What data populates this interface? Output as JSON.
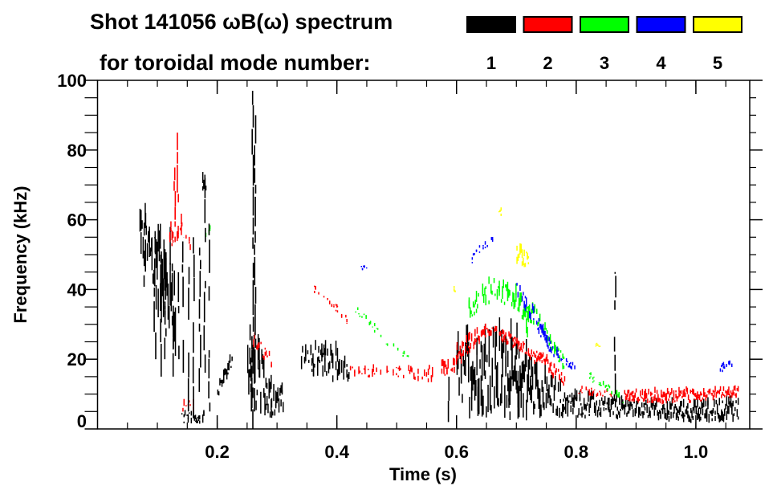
{
  "chart_data": {
    "type": "heatmap",
    "title_line1": "Shot 141056 ωB(ω) spectrum",
    "title_line2": "for toroidal mode number:",
    "xlabel": "Time (s)",
    "ylabel": "Frequency (kHz)",
    "xlim": [
      0,
      1.09
    ],
    "ylim": [
      0,
      100
    ],
    "x_ticks": [
      0.2,
      0.4,
      0.6,
      0.8,
      1.0
    ],
    "x_tick_labels": [
      "0.2",
      "0.4",
      "0.6",
      "0.8",
      "1.0"
    ],
    "x_minor_step": 0.05,
    "y_ticks": [
      0,
      20,
      40,
      60,
      80,
      100
    ],
    "y_tick_labels": [
      "0",
      "20",
      "40",
      "60",
      "80",
      "100"
    ],
    "y_minor_step": 5,
    "legend": [
      {
        "mode": "1",
        "color": "#000000"
      },
      {
        "mode": "2",
        "color": "#ff0000"
      },
      {
        "mode": "3",
        "color": "#00ff00"
      },
      {
        "mode": "4",
        "color": "#0000ff"
      },
      {
        "mode": "5",
        "color": "#ffff00"
      }
    ],
    "legend_placement": "top-right",
    "traces": [
      {
        "mode": 1,
        "density": 1.0,
        "pts": [
          [
            0.07,
            55,
            6
          ],
          [
            0.09,
            47,
            9
          ],
          [
            0.11,
            38,
            12
          ],
          [
            0.13,
            32,
            14
          ]
        ]
      },
      {
        "mode": 1,
        "density": 1.0,
        "pts": [
          [
            0.175,
            70,
            3
          ],
          [
            0.181,
            70,
            2
          ]
        ]
      },
      {
        "mode": 1,
        "density": 1.0,
        "pts": [
          [
            0.2,
            9,
            2
          ],
          [
            0.21,
            14,
            2
          ],
          [
            0.225,
            20,
            2
          ]
        ]
      },
      {
        "mode": 1,
        "density": 1.0,
        "pts": [
          [
            0.25,
            14,
            8
          ],
          [
            0.27,
            12,
            8
          ],
          [
            0.29,
            8,
            5
          ],
          [
            0.31,
            7,
            3
          ]
        ]
      },
      {
        "mode": 1,
        "density": 0.8,
        "pts": [
          [
            0.34,
            20,
            4
          ],
          [
            0.36,
            19,
            4
          ],
          [
            0.38,
            18,
            4
          ],
          [
            0.4,
            17,
            4
          ],
          [
            0.42,
            16,
            3
          ]
        ]
      },
      {
        "mode": 1,
        "density": 1.0,
        "pts": [
          [
            0.6,
            12,
            9
          ],
          [
            0.65,
            14,
            11
          ],
          [
            0.7,
            12,
            10
          ],
          [
            0.75,
            8,
            5
          ],
          [
            0.8,
            6,
            3
          ]
        ]
      },
      {
        "mode": 1,
        "density": 1.0,
        "pts": [
          [
            0.8,
            6,
            3
          ],
          [
            0.9,
            5,
            2.5
          ],
          [
            1.0,
            4,
            2.5
          ],
          [
            1.07,
            5,
            3
          ]
        ]
      },
      {
        "mode": 1,
        "density": 0.7,
        "pts": [
          [
            0.14,
            3,
            1.5
          ],
          [
            0.18,
            3,
            1.5
          ]
        ]
      },
      {
        "mode": 2,
        "density": 0.5,
        "pts": [
          [
            0.36,
            40,
            1
          ],
          [
            0.38,
            38,
            1
          ],
          [
            0.4,
            34,
            1
          ],
          [
            0.42,
            30,
            1
          ]
        ]
      },
      {
        "mode": 2,
        "density": 0.5,
        "pts": [
          [
            0.42,
            16,
            1.5
          ],
          [
            0.5,
            16,
            1.5
          ],
          [
            0.55,
            15,
            2
          ],
          [
            0.6,
            18,
            2
          ]
        ]
      },
      {
        "mode": 2,
        "density": 0.9,
        "pts": [
          [
            0.6,
            20,
            3
          ],
          [
            0.63,
            25,
            2
          ],
          [
            0.65,
            28,
            1.5
          ],
          [
            0.7,
            24,
            1.5
          ],
          [
            0.75,
            18,
            2
          ],
          [
            0.78,
            13,
            1.5
          ]
        ]
      },
      {
        "mode": 2,
        "density": 0.6,
        "pts": [
          [
            0.8,
            11,
            1
          ],
          [
            0.84,
            10,
            1
          ],
          [
            0.86,
            10,
            1
          ]
        ]
      },
      {
        "mode": 2,
        "density": 1.0,
        "pts": [
          [
            0.88,
            9,
            1.5
          ],
          [
            0.95,
            9,
            2
          ],
          [
            1.0,
            9,
            1.5
          ],
          [
            1.07,
            10,
            1.5
          ]
        ]
      },
      {
        "mode": 2,
        "density": 0.5,
        "pts": [
          [
            0.12,
            55,
            3
          ],
          [
            0.14,
            56,
            3
          ],
          [
            0.155,
            52,
            3
          ]
        ]
      },
      {
        "mode": 2,
        "density": 0.7,
        "pts": [
          [
            0.14,
            6,
            2
          ],
          [
            0.16,
            6,
            2
          ]
        ]
      },
      {
        "mode": 2,
        "density": 0.6,
        "pts": [
          [
            0.26,
            25,
            2
          ],
          [
            0.29,
            19,
            2
          ]
        ]
      },
      {
        "mode": 3,
        "density": 0.5,
        "pts": [
          [
            0.42,
            36,
            1
          ],
          [
            0.45,
            31,
            1
          ],
          [
            0.48,
            25,
            1
          ],
          [
            0.52,
            20,
            1
          ]
        ]
      },
      {
        "mode": 3,
        "density": 0.8,
        "pts": [
          [
            0.62,
            32,
            3
          ],
          [
            0.66,
            40,
            3
          ],
          [
            0.7,
            36,
            3
          ],
          [
            0.74,
            30,
            2
          ],
          [
            0.78,
            18,
            2
          ]
        ]
      },
      {
        "mode": 3,
        "density": 0.8,
        "pts": [
          [
            0.7,
            33,
            5
          ],
          [
            0.72,
            30,
            5
          ]
        ]
      },
      {
        "mode": 3,
        "density": 0.5,
        "pts": [
          [
            0.82,
            15,
            1
          ],
          [
            0.88,
            8,
            1
          ]
        ]
      },
      {
        "mode": 3,
        "density": 0.6,
        "pts": [
          [
            0.18,
            55,
            2
          ],
          [
            0.19,
            58,
            1
          ]
        ]
      },
      {
        "mode": 4,
        "density": 0.5,
        "pts": [
          [
            0.62,
            47,
            1
          ],
          [
            0.64,
            52,
            1
          ],
          [
            0.66,
            54,
            1
          ]
        ]
      },
      {
        "mode": 4,
        "density": 0.7,
        "pts": [
          [
            0.7,
            40,
            2
          ],
          [
            0.74,
            28,
            2
          ],
          [
            0.76,
            22,
            1.5
          ],
          [
            0.8,
            17,
            1
          ]
        ]
      },
      {
        "mode": 4,
        "density": 0.7,
        "pts": [
          [
            1.04,
            17,
            1
          ],
          [
            1.06,
            18,
            1
          ]
        ]
      },
      {
        "mode": 4,
        "density": 0.8,
        "pts": [
          [
            0.44,
            46,
            0.5
          ],
          [
            0.45,
            46,
            0.5
          ]
        ]
      },
      {
        "mode": 5,
        "density": 0.9,
        "pts": [
          [
            0.7,
            50,
            3
          ],
          [
            0.72,
            48,
            2
          ]
        ]
      },
      {
        "mode": 5,
        "density": 0.8,
        "pts": [
          [
            0.595,
            40,
            1
          ],
          [
            0.6,
            39,
            1
          ]
        ]
      },
      {
        "mode": 5,
        "density": 0.8,
        "pts": [
          [
            0.67,
            62,
            1
          ],
          [
            0.675,
            62,
            1
          ]
        ]
      },
      {
        "mode": 5,
        "density": 0.8,
        "pts": [
          [
            0.83,
            24,
            0.5
          ],
          [
            0.84,
            24,
            0.5
          ]
        ]
      }
    ],
    "streaks": [
      [
        0.078,
        30,
        62,
        1
      ],
      [
        0.095,
        20,
        55,
        1
      ],
      [
        0.105,
        15,
        50,
        1
      ],
      [
        0.112,
        20,
        45,
        1
      ],
      [
        0.125,
        15,
        55,
        1
      ],
      [
        0.135,
        20,
        50,
        1
      ],
      [
        0.142,
        10,
        55,
        1
      ],
      [
        0.152,
        5,
        50,
        1
      ],
      [
        0.16,
        3,
        55,
        1
      ],
      [
        0.17,
        2,
        52,
        1
      ],
      [
        0.178,
        8,
        72,
        1
      ],
      [
        0.186,
        5,
        60,
        1
      ],
      [
        0.258,
        0,
        97,
        1
      ],
      [
        0.262,
        5,
        90,
        1
      ],
      [
        0.255,
        5,
        30,
        1
      ],
      [
        0.864,
        10,
        45,
        1
      ],
      [
        0.585,
        2,
        15,
        1
      ],
      [
        0.95,
        3,
        8,
        1
      ],
      [
        0.133,
        65,
        85,
        2
      ],
      [
        0.128,
        60,
        75,
        2
      ]
    ]
  }
}
